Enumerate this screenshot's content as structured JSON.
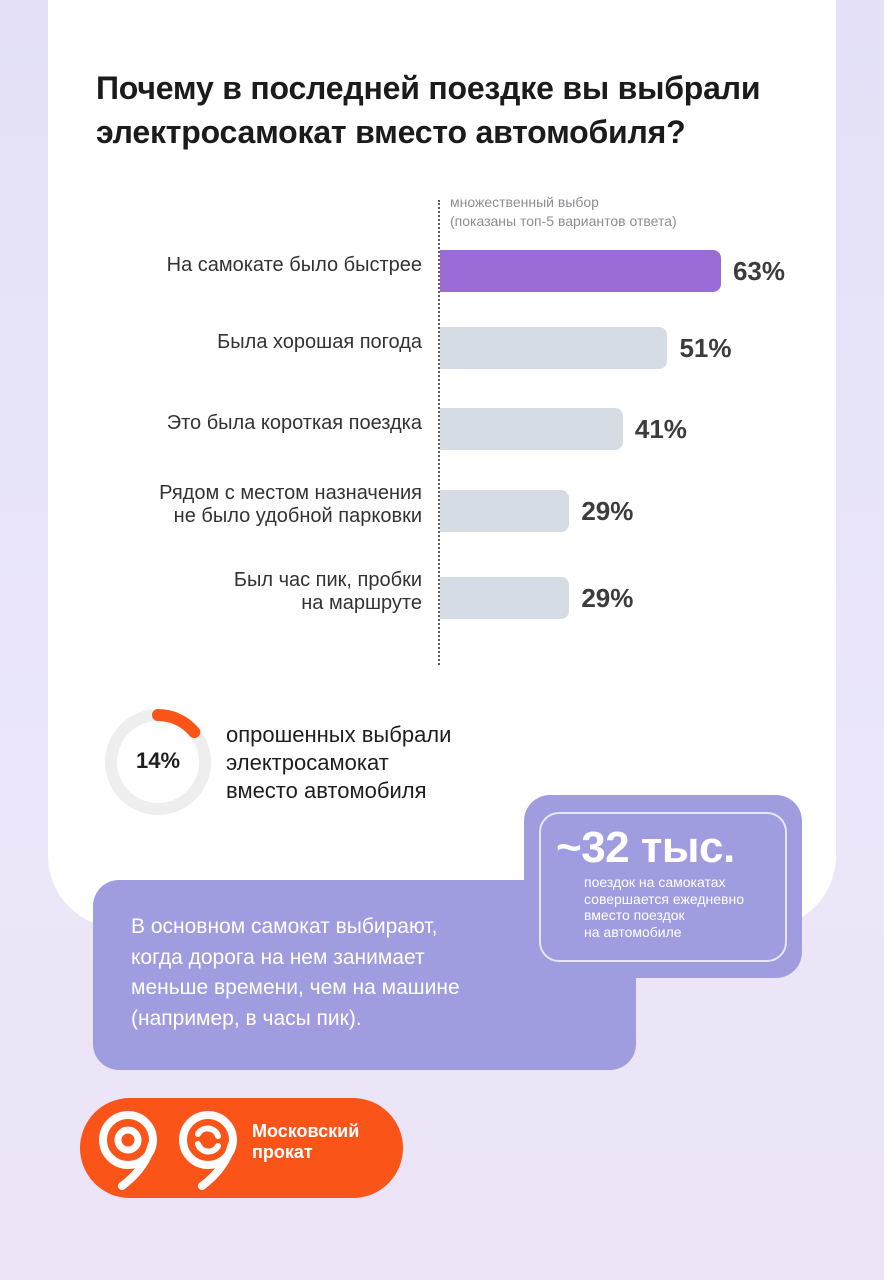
{
  "chart_data": {
    "type": "bar",
    "orientation": "horizontal",
    "title": "Почему в последней поездке вы выбрали электросамокат вместо автомобиля?",
    "note": [
      "множественный выбор",
      "(показаны топ-5 вариантов ответа)"
    ],
    "categories": [
      [
        "На самокате было быстрее"
      ],
      [
        "Была хорошая погода"
      ],
      [
        "Это была короткая поездка"
      ],
      [
        "Рядом с местом назначения",
        "не было удобной парковки"
      ],
      [
        "Был час пик, пробки",
        "на маршруте"
      ]
    ],
    "values": [
      63,
      51,
      41,
      29,
      29
    ],
    "value_labels": [
      "63%",
      "51%",
      "41%",
      "29%",
      "29%"
    ],
    "unit": "%",
    "xlim": [
      0,
      100
    ],
    "highlight_index": 0,
    "colors": {
      "highlight": "#9b6bd8",
      "default": "#d5dce4"
    }
  },
  "share": {
    "value": 14,
    "label": "14%",
    "text": [
      "опрошенных выбрали",
      "электросамокат",
      "вместо автомобиля"
    ],
    "colors": {
      "fill": "#fa5418",
      "track": "#eeeeee"
    }
  },
  "stat": {
    "number": "~32 тыс.",
    "text": [
      "поездок на самокатах",
      "совершается ежедневно",
      "вместо поездок",
      "на автомобиле"
    ]
  },
  "summary": [
    "В основном самокат выбирают,",
    "когда дорога на нем занимает",
    "меньше времени, чем на машине",
    "(например, в часы пик)."
  ],
  "logo": {
    "text": [
      "Московский",
      "прокат"
    ],
    "color": "#fa5418"
  }
}
